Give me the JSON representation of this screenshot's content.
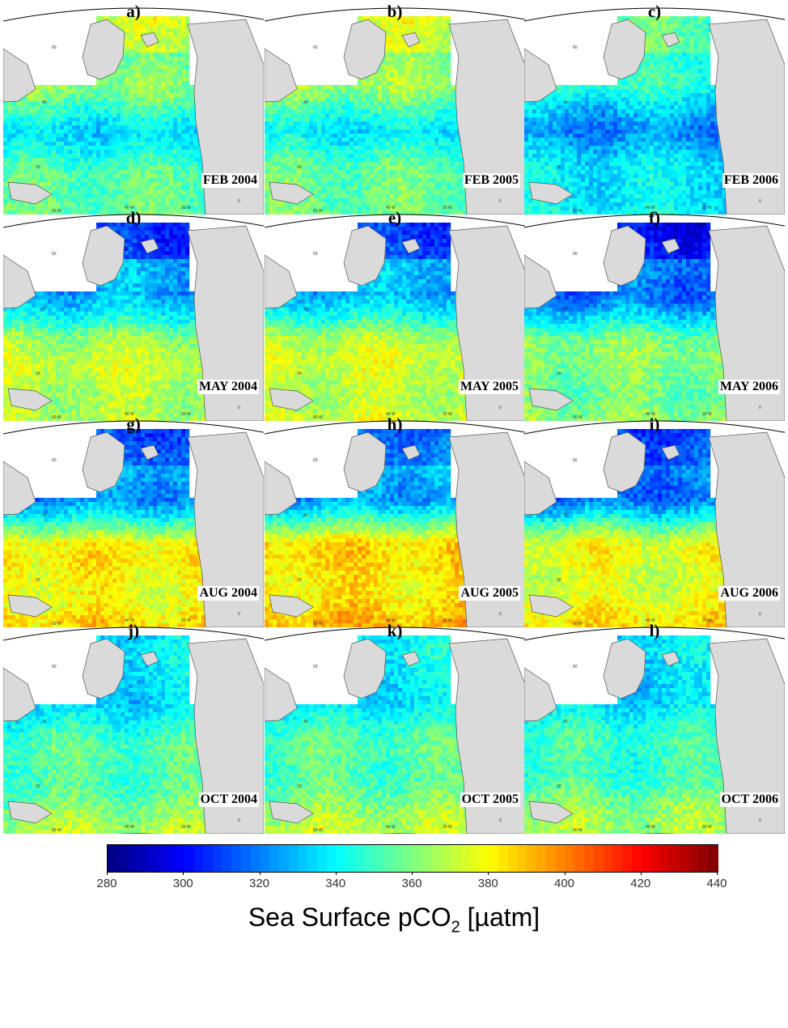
{
  "panels": [
    {
      "letter": "a)",
      "date": "FEB 2004",
      "season": "feb",
      "shift": 0
    },
    {
      "letter": "b)",
      "date": "FEB 2005",
      "season": "feb",
      "shift": 3
    },
    {
      "letter": "c)",
      "date": "FEB 2006",
      "season": "feb",
      "shift": -14
    },
    {
      "letter": "d)",
      "date": "MAY 2004",
      "season": "may",
      "shift": 0
    },
    {
      "letter": "e)",
      "date": "MAY 2005",
      "season": "may",
      "shift": 3
    },
    {
      "letter": "f)",
      "date": "MAY 2006",
      "season": "may",
      "shift": -8
    },
    {
      "letter": "g)",
      "date": "AUG 2004",
      "season": "aug",
      "shift": 0
    },
    {
      "letter": "h)",
      "date": "AUG 2005",
      "season": "aug",
      "shift": 4
    },
    {
      "letter": "i)",
      "date": "AUG 2006",
      "season": "aug",
      "shift": -4
    },
    {
      "letter": "j)",
      "date": "OCT 2004",
      "season": "oct",
      "shift": 0
    },
    {
      "letter": "k)",
      "date": "OCT 2005",
      "season": "oct",
      "shift": 2
    },
    {
      "letter": "l)",
      "date": "OCT 2006",
      "season": "oct",
      "shift": -1
    }
  ],
  "map_labels": {
    "lat": [
      "60",
      "40",
      "20"
    ],
    "lon": [
      "60 W",
      "40 W",
      "20 W",
      "0"
    ]
  },
  "seasons": {
    "feb": {
      "nwater": 372,
      "north": 358,
      "mid": 338,
      "south": 360
    },
    "may": {
      "nwater": 310,
      "north": 325,
      "mid": 365,
      "south": 372
    },
    "aug": {
      "nwater": 315,
      "north": 325,
      "mid": 378,
      "south": 385
    },
    "oct": {
      "nwater": 335,
      "north": 338,
      "mid": 350,
      "south": 365
    }
  },
  "colorbar": {
    "min": 280,
    "max": 440,
    "ticks": [
      280,
      300,
      320,
      340,
      360,
      380,
      400,
      420,
      440
    ],
    "title_main": "Sea Surface pCO",
    "title_sub": "2",
    "title_unit": " [µatm]",
    "colormap": "jet"
  }
}
